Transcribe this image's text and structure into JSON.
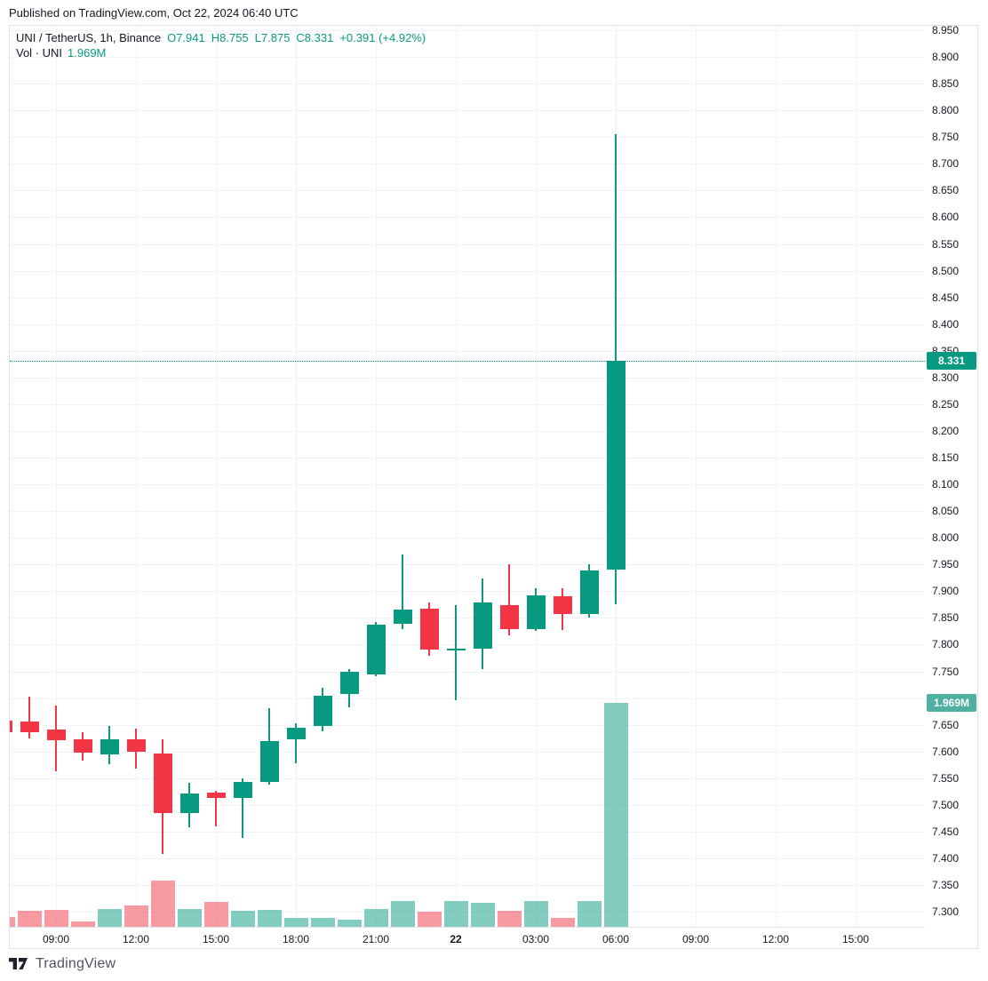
{
  "header": {
    "published_line": "Published on TradingView.com, Oct 22, 2024 06:40 UTC"
  },
  "legend": {
    "title": "UNI / TetherUS, 1h, Binance",
    "open": "O7.941",
    "high": "H8.755",
    "low": "L7.875",
    "close": "C8.331",
    "change": "+0.391 (+4.92%)",
    "volume_label": "Vol · UNI",
    "volume_value": "1.969M"
  },
  "badges": {
    "price": "8.331",
    "volume": "1.969M"
  },
  "watermark": {
    "brand": "TradingView"
  },
  "colors": {
    "up": "#089981",
    "down": "#f23645",
    "vol_up": "rgba(8,153,129,0.5)",
    "vol_down": "rgba(242,54,69,0.5)",
    "price_badge_bg": "#089981",
    "volume_badge_bg": "#4fb0a2",
    "grid": "#f0f3fa",
    "axis_text": "#131722",
    "border": "#e0e3eb",
    "dotted_line": "#089981"
  },
  "chart_data": {
    "type": "candlestick",
    "title": "UNI / TetherUS, 1h, Binance",
    "symbol": "UNI / TetherUS",
    "interval": "1h",
    "exchange": "Binance",
    "last": {
      "open": 7.941,
      "high": 8.755,
      "low": 7.875,
      "close": 8.331,
      "change": "+0.391",
      "change_pct": "+4.92%",
      "volume": "1.969M"
    },
    "last_price": 8.331,
    "y_axis": {
      "range": [
        7.28,
        8.97
      ],
      "tick_step": 0.05,
      "ticks": [
        "8.950",
        "8.900",
        "8.850",
        "8.800",
        "8.750",
        "8.700",
        "8.650",
        "8.600",
        "8.550",
        "8.500",
        "8.450",
        "8.400",
        "8.350",
        "8.300",
        "8.250",
        "8.200",
        "8.150",
        "8.100",
        "8.050",
        "8.000",
        "7.950",
        "7.900",
        "7.850",
        "7.800",
        "7.750",
        "7.700",
        "7.650",
        "7.600",
        "7.550",
        "7.500",
        "7.450",
        "7.400",
        "7.350",
        "7.300"
      ]
    },
    "x_axis": {
      "labels": [
        {
          "text": "09:00",
          "slot": 2,
          "bold": false
        },
        {
          "text": "12:00",
          "slot": 5,
          "bold": false
        },
        {
          "text": "15:00",
          "slot": 8,
          "bold": false
        },
        {
          "text": "18:00",
          "slot": 11,
          "bold": false
        },
        {
          "text": "21:00",
          "slot": 14,
          "bold": false
        },
        {
          "text": "22",
          "slot": 17,
          "bold": true
        },
        {
          "text": "03:00",
          "slot": 20,
          "bold": false
        },
        {
          "text": "06:00",
          "slot": 23,
          "bold": false
        },
        {
          "text": "09:00",
          "slot": 26,
          "bold": false
        },
        {
          "text": "12:00",
          "slot": 29,
          "bold": false
        },
        {
          "text": "15:00",
          "slot": 32,
          "bold": false
        }
      ]
    },
    "candles": [
      {
        "t": "07:00",
        "o": 7.658,
        "h": 7.66,
        "l": 7.634,
        "c": 7.636
      },
      {
        "t": "08:00",
        "o": 7.656,
        "h": 7.702,
        "l": 7.624,
        "c": 7.636
      },
      {
        "t": "09:00",
        "o": 7.641,
        "h": 7.686,
        "l": 7.563,
        "c": 7.621
      },
      {
        "t": "10:00",
        "o": 7.622,
        "h": 7.636,
        "l": 7.583,
        "c": 7.598
      },
      {
        "t": "11:00",
        "o": 7.594,
        "h": 7.647,
        "l": 7.576,
        "c": 7.623
      },
      {
        "t": "12:00",
        "o": 7.623,
        "h": 7.642,
        "l": 7.567,
        "c": 7.6
      },
      {
        "t": "13:00",
        "o": 7.596,
        "h": 7.622,
        "l": 7.408,
        "c": 7.484
      },
      {
        "t": "14:00",
        "o": 7.484,
        "h": 7.541,
        "l": 7.458,
        "c": 7.521
      },
      {
        "t": "15:00",
        "o": 7.523,
        "h": 7.526,
        "l": 7.46,
        "c": 7.512
      },
      {
        "t": "16:00",
        "o": 7.513,
        "h": 7.549,
        "l": 7.438,
        "c": 7.543
      },
      {
        "t": "17:00",
        "o": 7.543,
        "h": 7.681,
        "l": 7.537,
        "c": 7.619
      },
      {
        "t": "18:00",
        "o": 7.622,
        "h": 7.652,
        "l": 7.577,
        "c": 7.644
      },
      {
        "t": "19:00",
        "o": 7.647,
        "h": 7.719,
        "l": 7.638,
        "c": 7.705
      },
      {
        "t": "20:00",
        "o": 7.707,
        "h": 7.754,
        "l": 7.683,
        "c": 7.749
      },
      {
        "t": "21:00",
        "o": 7.744,
        "h": 7.842,
        "l": 7.74,
        "c": 7.837
      },
      {
        "t": "22:00",
        "o": 7.839,
        "h": 7.969,
        "l": 7.829,
        "c": 7.866
      },
      {
        "t": "23:00",
        "o": 7.867,
        "h": 7.879,
        "l": 7.779,
        "c": 7.791
      },
      {
        "t": "00:00",
        "o": 7.791,
        "h": 7.874,
        "l": 7.696,
        "c": 7.793
      },
      {
        "t": "01:00",
        "o": 7.792,
        "h": 7.924,
        "l": 7.754,
        "c": 7.879
      },
      {
        "t": "02:00",
        "o": 7.874,
        "h": 7.95,
        "l": 7.817,
        "c": 7.829
      },
      {
        "t": "03:00",
        "o": 7.829,
        "h": 7.905,
        "l": 7.825,
        "c": 7.892
      },
      {
        "t": "04:00",
        "o": 7.89,
        "h": 7.905,
        "l": 7.827,
        "c": 7.857
      },
      {
        "t": "05:00",
        "o": 7.857,
        "h": 7.95,
        "l": 7.85,
        "c": 7.939
      },
      {
        "t": "06:00",
        "o": 7.941,
        "h": 8.755,
        "l": 7.875,
        "c": 8.331
      }
    ],
    "volume_m": [
      0.09,
      0.14,
      0.15,
      0.05,
      0.16,
      0.19,
      0.41,
      0.16,
      0.22,
      0.14,
      0.15,
      0.08,
      0.08,
      0.06,
      0.16,
      0.23,
      0.13,
      0.23,
      0.21,
      0.14,
      0.23,
      0.08,
      0.23,
      1.969
    ]
  }
}
